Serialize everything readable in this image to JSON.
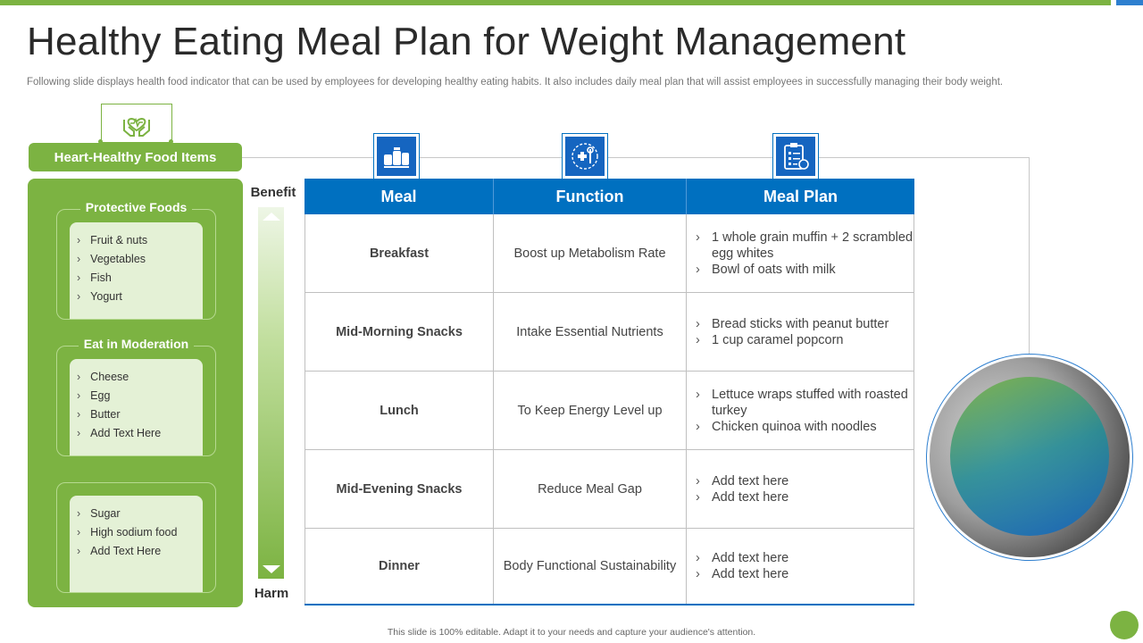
{
  "title": "Healthy Eating Meal Plan for Weight Management",
  "subtitle": "Following slide displays health food indicator that can be used by employees for developing healthy eating habits. It also includes daily meal plan that will assist employees in successfully managing their body weight.",
  "left_panel": {
    "header": "Heart-Healthy Food Items",
    "groups": [
      {
        "title": "Protective Foods",
        "items": [
          "Fruit & nuts",
          "Vegetables",
          "Fish",
          "Yogurt"
        ]
      },
      {
        "title": "Eat in Moderation",
        "items": [
          "Cheese",
          "Egg",
          "Butter",
          "Add Text Here"
        ]
      },
      {
        "title": "",
        "items": [
          "Sugar",
          "High sodium food",
          "Add Text Here"
        ]
      }
    ]
  },
  "scale": {
    "top": "Benefit",
    "bottom": "Harm"
  },
  "table": {
    "headers": [
      "Meal",
      "Function",
      "Meal Plan"
    ],
    "rows": [
      {
        "meal": "Breakfast",
        "function": "Boost up Metabolism Rate",
        "plan": [
          "1 whole grain muffin + 2 scrambled egg whites",
          "Bowl of oats with milk"
        ]
      },
      {
        "meal": "Mid-Morning Snacks",
        "function": "Intake Essential Nutrients",
        "plan": [
          "Bread sticks with peanut butter",
          "1 cup caramel popcorn"
        ]
      },
      {
        "meal": "Lunch",
        "function": "To Keep Energy Level up",
        "plan": [
          "Lettuce wraps stuffed with roasted turkey",
          "Chicken quinoa with noodles"
        ]
      },
      {
        "meal": "Mid-Evening Snacks",
        "function": "Reduce Meal Gap",
        "plan": [
          "Add text here",
          "Add text here"
        ]
      },
      {
        "meal": "Dinner",
        "function": "Body Functional Sustainability",
        "plan": [
          "Add text here",
          "Add text here"
        ]
      }
    ]
  },
  "icons": {
    "food_items": "heart-hands-icon",
    "meal": "food-jars-icon",
    "function": "health-tools-icon",
    "meal_plan": "clipboard-plan-icon"
  },
  "colors": {
    "green": "#7cb342",
    "blue": "#0070c0",
    "light_green": "#e4f1d6"
  },
  "footer": "This slide is 100% editable. Adapt it to your needs and capture your audience's attention."
}
